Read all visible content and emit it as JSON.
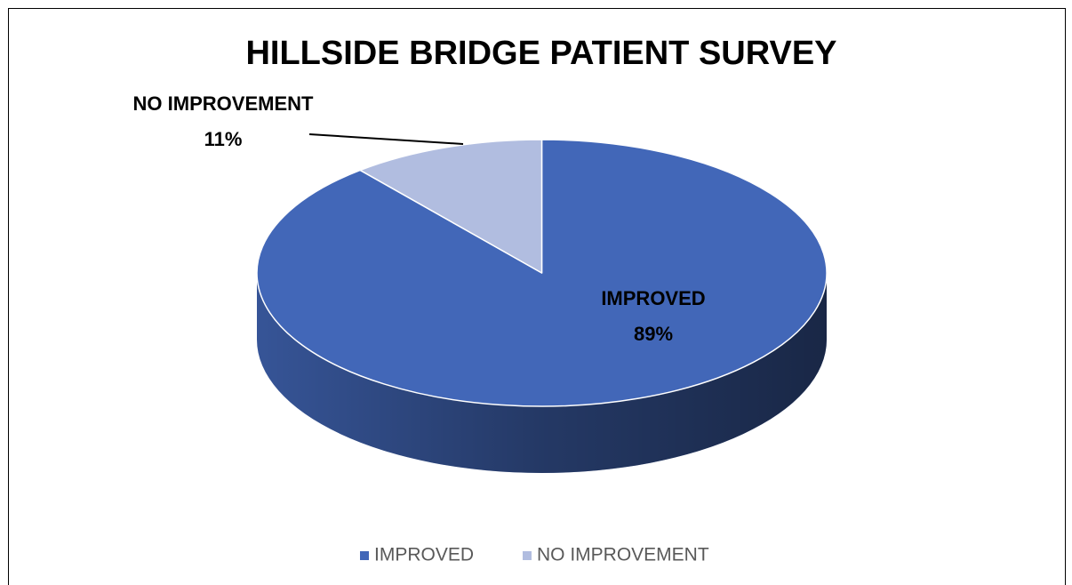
{
  "chart_data": {
    "type": "pie",
    "title": "HILLSIDE BRIDGE PATIENT SURVEY",
    "categories": [
      "IMPROVED",
      "NO IMPROVEMENT"
    ],
    "values": [
      89,
      11
    ],
    "value_labels": [
      "89%",
      "11%"
    ],
    "colors": [
      "#4267b8",
      "#b1bde0"
    ],
    "legend": "bottom"
  }
}
